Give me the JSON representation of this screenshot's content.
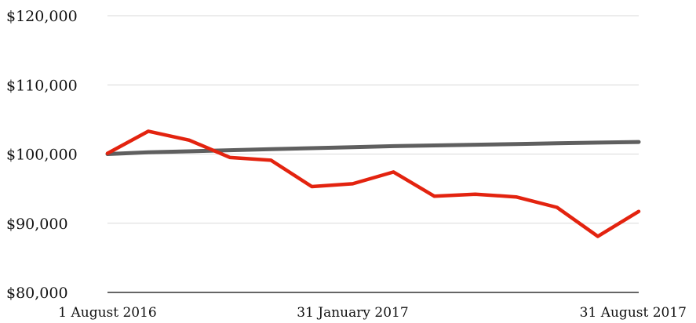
{
  "chart_data": {
    "type": "line",
    "title": "",
    "xlabel": "",
    "ylabel": "",
    "ylim": [
      80000,
      120000
    ],
    "y_ticks": [
      {
        "value": 120000,
        "label": "$120,000"
      },
      {
        "value": 110000,
        "label": "$110,000"
      },
      {
        "value": 100000,
        "label": "$100,000"
      },
      {
        "value": 90000,
        "label": "$90,000"
      },
      {
        "value": 80000,
        "label": "$80,000"
      }
    ],
    "x_tick_labels": [
      {
        "index": 0,
        "label": "1 August 2016"
      },
      {
        "index": 6,
        "label": "31 January 2017"
      },
      {
        "index": 13,
        "label": "31 August 2017"
      }
    ],
    "grid": true,
    "legend": "none",
    "series": [
      {
        "color": "#5f5f5f",
        "values": [
          100000,
          100250,
          100400,
          100550,
          100700,
          100850,
          101000,
          101150,
          101250,
          101350,
          101450,
          101550,
          101650,
          101750
        ]
      },
      {
        "color": "#e3230f",
        "values": [
          100100,
          103300,
          102000,
          99500,
          99100,
          95300,
          95700,
          97400,
          93900,
          94200,
          93800,
          92300,
          88100,
          91700
        ]
      }
    ]
  }
}
